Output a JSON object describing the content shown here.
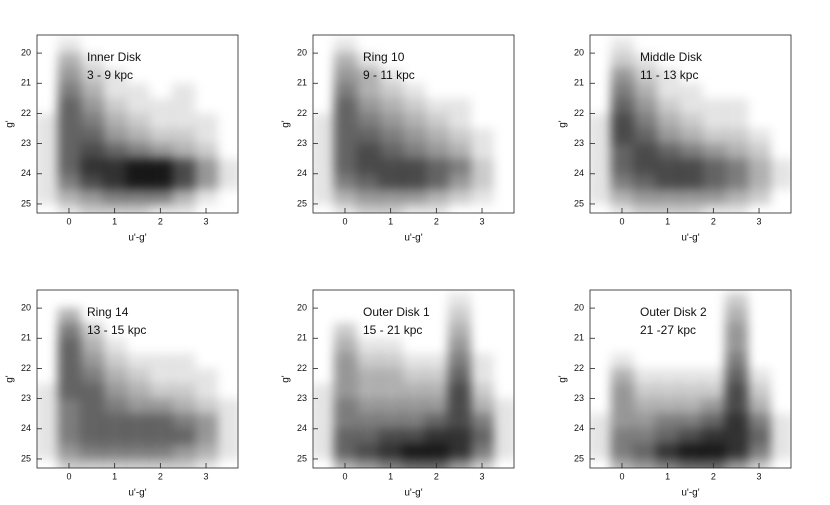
{
  "chart_data": [
    {
      "type": "heatmap",
      "title": "Inner Disk",
      "subtitle": "3 - 9 kpc",
      "xlabel": "u'-g'",
      "ylabel": "g'",
      "color": "#000000",
      "xlim": [
        -0.7,
        3.7
      ],
      "ylim": [
        25.3,
        19.4
      ],
      "xticks": [
        0,
        1,
        2,
        3
      ],
      "yticks": [
        20,
        21,
        22,
        23,
        24,
        25
      ],
      "xbins": [
        -0.75,
        -0.25,
        0.25,
        0.75,
        1.25,
        1.75,
        2.25,
        2.75,
        3.25,
        3.75
      ],
      "ybins": [
        19.5,
        20,
        20.5,
        21,
        21.5,
        22,
        22.5,
        23,
        23.5,
        24,
        24.5,
        25,
        25.5
      ],
      "density": [
        [
          0,
          1,
          0,
          0,
          0,
          0,
          0,
          0,
          0
        ],
        [
          0,
          3,
          1,
          0,
          0,
          0,
          0,
          0,
          0
        ],
        [
          0,
          4,
          2,
          1,
          0,
          0,
          0,
          0,
          0
        ],
        [
          0,
          5,
          3,
          1,
          1,
          0,
          1,
          0,
          0
        ],
        [
          0,
          6,
          4,
          2,
          1,
          1,
          1,
          0,
          0
        ],
        [
          1,
          6,
          5,
          3,
          2,
          1,
          1,
          1,
          0
        ],
        [
          1,
          6,
          6,
          4,
          3,
          2,
          2,
          1,
          0
        ],
        [
          1,
          6,
          7,
          6,
          5,
          4,
          3,
          2,
          0
        ],
        [
          1,
          6,
          8,
          8,
          9,
          9,
          7,
          4,
          1
        ],
        [
          1,
          5,
          7,
          8,
          9,
          9,
          7,
          4,
          1
        ],
        [
          1,
          3,
          4,
          5,
          5,
          5,
          3,
          1,
          0
        ],
        [
          0,
          1,
          2,
          2,
          2,
          1,
          1,
          0,
          0
        ]
      ]
    },
    {
      "type": "heatmap",
      "title": "Ring 10",
      "subtitle": "9 - 11 kpc",
      "xlabel": "u'-g'",
      "ylabel": "g'",
      "color": "#000000",
      "xlim": [
        -0.7,
        3.7
      ],
      "ylim": [
        25.3,
        19.4
      ],
      "xticks": [
        0,
        1,
        2,
        3
      ],
      "yticks": [
        20,
        21,
        22,
        23,
        24,
        25
      ],
      "xbins": [
        -0.75,
        -0.25,
        0.25,
        0.75,
        1.25,
        1.75,
        2.25,
        2.75,
        3.25,
        3.75
      ],
      "ybins": [
        19.5,
        20,
        20.5,
        21,
        21.5,
        22,
        22.5,
        23,
        23.5,
        24,
        24.5,
        25,
        25.5
      ],
      "density": [
        [
          0,
          1,
          0,
          0,
          0,
          0,
          0,
          0,
          0
        ],
        [
          0,
          3,
          1,
          0,
          0,
          0,
          0,
          0,
          0
        ],
        [
          0,
          4,
          3,
          1,
          0,
          0,
          0,
          0,
          0
        ],
        [
          0,
          5,
          3,
          2,
          1,
          0,
          0,
          0,
          0
        ],
        [
          0,
          6,
          4,
          3,
          2,
          1,
          1,
          0,
          0
        ],
        [
          1,
          6,
          5,
          4,
          3,
          2,
          1,
          0,
          0
        ],
        [
          1,
          6,
          6,
          5,
          4,
          3,
          2,
          1,
          0
        ],
        [
          1,
          6,
          7,
          6,
          5,
          4,
          3,
          1,
          0
        ],
        [
          1,
          6,
          7,
          7,
          7,
          6,
          5,
          2,
          0
        ],
        [
          1,
          5,
          6,
          7,
          7,
          6,
          4,
          2,
          0
        ],
        [
          1,
          3,
          4,
          4,
          4,
          3,
          2,
          1,
          0
        ],
        [
          0,
          1,
          2,
          2,
          1,
          1,
          0,
          0,
          0
        ]
      ]
    },
    {
      "type": "heatmap",
      "title": "Middle Disk",
      "subtitle": "11 - 13 kpc",
      "xlabel": "u'-g'",
      "ylabel": "g'",
      "color": "#000000",
      "xlim": [
        -0.7,
        3.7
      ],
      "ylim": [
        25.3,
        19.4
      ],
      "xticks": [
        0,
        1,
        2,
        3
      ],
      "yticks": [
        20,
        21,
        22,
        23,
        24,
        25
      ],
      "xbins": [
        -0.75,
        -0.25,
        0.25,
        0.75,
        1.25,
        1.75,
        2.25,
        2.75,
        3.25,
        3.75
      ],
      "ybins": [
        19.5,
        20,
        20.5,
        21,
        21.5,
        22,
        22.5,
        23,
        23.5,
        24,
        24.5,
        25,
        25.5
      ],
      "density": [
        [
          0,
          1,
          0,
          0,
          0,
          0,
          0,
          0,
          0
        ],
        [
          0,
          2,
          1,
          0,
          0,
          0,
          0,
          0,
          0
        ],
        [
          0,
          4,
          2,
          1,
          0,
          0,
          0,
          0,
          0
        ],
        [
          0,
          5,
          3,
          1,
          1,
          0,
          0,
          0,
          0
        ],
        [
          0,
          6,
          4,
          2,
          1,
          1,
          1,
          0,
          0
        ],
        [
          1,
          7,
          5,
          3,
          2,
          1,
          1,
          0,
          0
        ],
        [
          1,
          7,
          6,
          4,
          3,
          2,
          2,
          1,
          0
        ],
        [
          1,
          6,
          7,
          6,
          5,
          4,
          3,
          2,
          0
        ],
        [
          1,
          6,
          7,
          7,
          7,
          6,
          5,
          3,
          1
        ],
        [
          1,
          5,
          6,
          7,
          7,
          6,
          5,
          3,
          1
        ],
        [
          1,
          3,
          4,
          4,
          4,
          4,
          3,
          2,
          0
        ],
        [
          0,
          1,
          2,
          2,
          2,
          1,
          1,
          0,
          0
        ]
      ]
    },
    {
      "type": "heatmap",
      "title": "Ring 14",
      "subtitle": "13 - 15 kpc",
      "xlabel": "u'-g'",
      "ylabel": "g'",
      "color": "#000000",
      "xlim": [
        -0.7,
        3.7
      ],
      "ylim": [
        25.3,
        19.4
      ],
      "xticks": [
        0,
        1,
        2,
        3
      ],
      "yticks": [
        20,
        21,
        22,
        23,
        24,
        25
      ],
      "xbins": [
        -0.75,
        -0.25,
        0.25,
        0.75,
        1.25,
        1.75,
        2.25,
        2.75,
        3.25,
        3.75
      ],
      "ybins": [
        19.5,
        20,
        20.5,
        21,
        21.5,
        22,
        22.5,
        23,
        23.5,
        24,
        24.5,
        25,
        25.5
      ],
      "density": [
        [
          0,
          0,
          0,
          0,
          0,
          0,
          0,
          0,
          0
        ],
        [
          0,
          3,
          0,
          0,
          0,
          0,
          0,
          0,
          0
        ],
        [
          0,
          5,
          2,
          0,
          0,
          0,
          0,
          0,
          0
        ],
        [
          0,
          6,
          3,
          1,
          0,
          0,
          0,
          0,
          0
        ],
        [
          0,
          6,
          4,
          2,
          1,
          1,
          1,
          0,
          0
        ],
        [
          0,
          6,
          5,
          3,
          2,
          1,
          1,
          1,
          0
        ],
        [
          1,
          6,
          6,
          4,
          3,
          2,
          2,
          1,
          0
        ],
        [
          1,
          5,
          6,
          5,
          4,
          4,
          3,
          2,
          1
        ],
        [
          1,
          5,
          6,
          6,
          6,
          6,
          5,
          4,
          1
        ],
        [
          1,
          5,
          6,
          6,
          6,
          6,
          6,
          4,
          1
        ],
        [
          1,
          4,
          5,
          5,
          5,
          5,
          4,
          3,
          1
        ],
        [
          0,
          2,
          2,
          2,
          2,
          2,
          2,
          1,
          0
        ]
      ]
    },
    {
      "type": "heatmap",
      "title": "Outer Disk 1",
      "subtitle": "15 - 21 kpc",
      "xlabel": "u'-g'",
      "ylabel": "g'",
      "color": "#000000",
      "xlim": [
        -0.7,
        3.7
      ],
      "ylim": [
        25.3,
        19.4
      ],
      "xticks": [
        0,
        1,
        2,
        3
      ],
      "yticks": [
        20,
        21,
        22,
        23,
        24,
        25
      ],
      "xbins": [
        -0.75,
        -0.25,
        0.25,
        0.75,
        1.25,
        1.75,
        2.25,
        2.75,
        3.25,
        3.75
      ],
      "ybins": [
        19.5,
        20,
        20.5,
        21,
        21.5,
        22,
        22.5,
        23,
        23.5,
        24,
        24.5,
        25,
        25.5
      ],
      "density": [
        [
          0,
          0,
          0,
          0,
          0,
          0,
          1,
          0,
          0
        ],
        [
          0,
          0,
          0,
          0,
          0,
          0,
          2,
          0,
          0
        ],
        [
          0,
          2,
          0,
          0,
          0,
          0,
          3,
          0,
          0
        ],
        [
          0,
          3,
          1,
          1,
          0,
          0,
          4,
          0,
          0
        ],
        [
          0,
          4,
          2,
          2,
          1,
          1,
          5,
          1,
          0
        ],
        [
          0,
          4,
          3,
          3,
          2,
          2,
          6,
          1,
          0
        ],
        [
          1,
          4,
          3,
          3,
          3,
          3,
          7,
          2,
          0
        ],
        [
          1,
          5,
          4,
          4,
          4,
          4,
          7,
          3,
          1
        ],
        [
          1,
          5,
          5,
          5,
          5,
          6,
          7,
          5,
          1
        ],
        [
          1,
          6,
          6,
          7,
          7,
          8,
          8,
          6,
          1
        ],
        [
          1,
          6,
          7,
          8,
          9,
          9,
          8,
          5,
          1
        ],
        [
          0,
          3,
          4,
          5,
          6,
          6,
          4,
          2,
          0
        ]
      ]
    },
    {
      "type": "heatmap",
      "title": "Outer Disk 2",
      "subtitle": "21 -27 kpc",
      "xlabel": "u'-g'",
      "ylabel": "g'",
      "color": "#000000",
      "xlim": [
        -0.7,
        3.7
      ],
      "ylim": [
        25.3,
        19.4
      ],
      "xticks": [
        0,
        1,
        2,
        3
      ],
      "yticks": [
        20,
        21,
        22,
        23,
        24,
        25
      ],
      "xbins": [
        -0.75,
        -0.25,
        0.25,
        0.75,
        1.25,
        1.75,
        2.25,
        2.75,
        3.25,
        3.75
      ],
      "ybins": [
        19.5,
        20,
        20.5,
        21,
        21.5,
        22,
        22.5,
        23,
        23.5,
        24,
        24.5,
        25,
        25.5
      ],
      "density": [
        [
          0,
          0,
          0,
          0,
          0,
          0,
          2,
          0,
          0
        ],
        [
          0,
          0,
          0,
          0,
          0,
          0,
          3,
          0,
          0
        ],
        [
          0,
          0,
          0,
          0,
          0,
          0,
          4,
          0,
          0
        ],
        [
          0,
          0,
          0,
          0,
          0,
          0,
          4,
          0,
          0
        ],
        [
          0,
          1,
          0,
          0,
          0,
          0,
          5,
          0,
          0
        ],
        [
          0,
          3,
          1,
          1,
          1,
          1,
          6,
          1,
          0
        ],
        [
          0,
          4,
          2,
          2,
          2,
          2,
          7,
          2,
          0
        ],
        [
          0,
          4,
          3,
          3,
          3,
          4,
          7,
          3,
          0
        ],
        [
          1,
          4,
          4,
          5,
          5,
          6,
          8,
          5,
          1
        ],
        [
          1,
          5,
          5,
          6,
          7,
          8,
          8,
          6,
          1
        ],
        [
          1,
          5,
          6,
          8,
          9,
          9,
          8,
          5,
          1
        ],
        [
          0,
          3,
          4,
          5,
          6,
          6,
          4,
          2,
          0
        ]
      ]
    }
  ]
}
